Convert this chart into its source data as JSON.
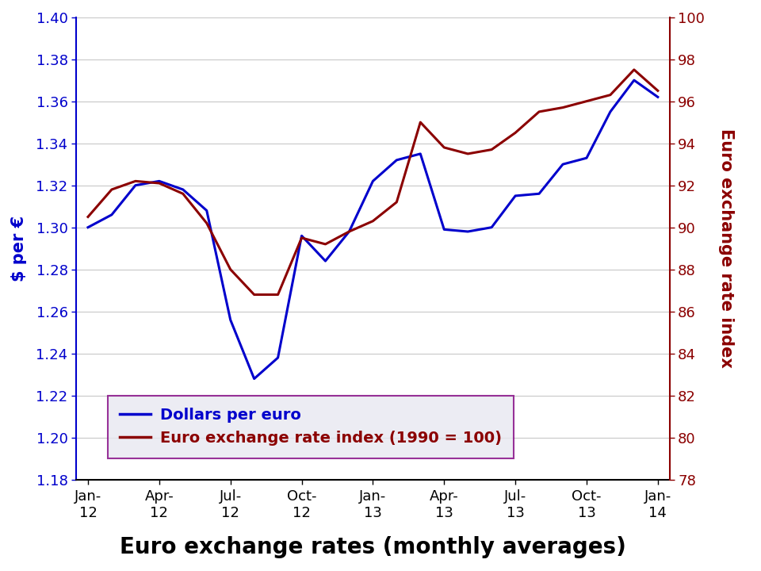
{
  "title": "Euro exchange rates (monthly averages)",
  "ylabel_left": "$ per €",
  "ylabel_right": "Euro exchange rate index",
  "x_tick_labels": [
    "Jan-\n12",
    "Apr-\n12",
    "Jul-\n12",
    "Oct-\n12",
    "Jan-\n13",
    "Apr-\n13",
    "Jul-\n13",
    "Oct-\n13",
    "Jan-\n14"
  ],
  "x_tick_positions": [
    0,
    3,
    6,
    9,
    12,
    15,
    18,
    21,
    24
  ],
  "dollars_per_euro": [
    1.3,
    1.306,
    1.32,
    1.322,
    1.318,
    1.308,
    1.256,
    1.228,
    1.238,
    1.296,
    1.284,
    1.298,
    1.322,
    1.332,
    1.335,
    1.299,
    1.298,
    1.3,
    1.315,
    1.316,
    1.33,
    1.333,
    1.355,
    1.37,
    1.362
  ],
  "exchange_rate_index": [
    90.5,
    91.8,
    92.2,
    92.1,
    91.6,
    90.2,
    88.0,
    86.8,
    86.8,
    89.5,
    89.2,
    89.8,
    90.3,
    91.2,
    95.0,
    93.8,
    93.5,
    93.7,
    94.5,
    95.5,
    95.7,
    96.0,
    96.3,
    97.5,
    96.5
  ],
  "left_ylim": [
    1.18,
    1.4
  ],
  "right_ylim": [
    78,
    100
  ],
  "left_yticks": [
    1.18,
    1.2,
    1.22,
    1.24,
    1.26,
    1.28,
    1.3,
    1.32,
    1.34,
    1.36,
    1.38,
    1.4
  ],
  "right_yticks": [
    78,
    80,
    82,
    84,
    86,
    88,
    90,
    92,
    94,
    96,
    98,
    100
  ],
  "blue_color": "#0000CC",
  "dark_red_color": "#8B0000",
  "legend_label_blue": "Dollars per euro",
  "legend_label_red": "Euro exchange rate index (1990 = 100)",
  "background_color": "#FFFFFF",
  "legend_bg_color": "#E8E8F0",
  "legend_border_color": "#800080",
  "grid_color": "#C8C8C8",
  "title_fontsize": 20,
  "axis_label_fontsize": 15,
  "tick_fontsize": 13,
  "legend_fontsize": 14
}
